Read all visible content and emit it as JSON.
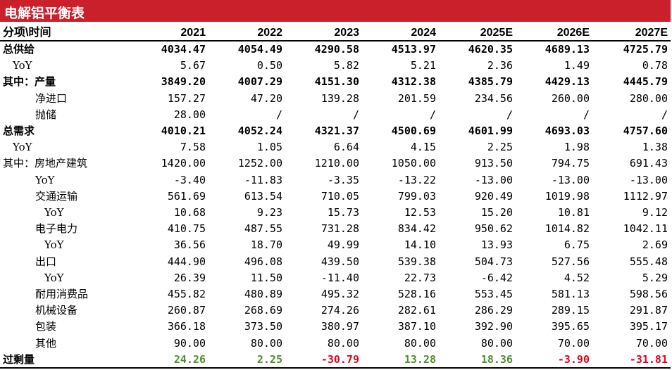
{
  "title": "电解铝平衡表",
  "table": {
    "header": [
      "分项\\时间",
      "2021",
      "2022",
      "2023",
      "2024",
      "2025E",
      "2026E",
      "2027E"
    ],
    "rows": [
      [
        "总供给",
        "4034.47",
        "4054.49",
        "4290.58",
        "4513.97",
        "4620.35",
        "4689.13",
        "4725.79"
      ],
      [
        "YoY",
        "5.67",
        "0.50",
        "5.82",
        "5.21",
        "2.36",
        "1.49",
        "0.78"
      ],
      [
        "其中：产量",
        "3849.20",
        "4007.29",
        "4151.30",
        "4312.38",
        "4385.79",
        "4429.13",
        "4445.79"
      ],
      [
        "净进口",
        "157.27",
        "47.20",
        "139.28",
        "201.59",
        "234.56",
        "260.00",
        "280.00"
      ],
      [
        "抛储",
        "28.00",
        "/",
        "/",
        "/",
        "/",
        "/",
        "/"
      ],
      [
        "总需求",
        "4010.21",
        "4052.24",
        "4321.37",
        "4500.69",
        "4601.99",
        "4693.03",
        "4757.60"
      ],
      [
        "YoY",
        "7.58",
        "1.05",
        "6.64",
        "4.15",
        "2.25",
        "1.98",
        "1.38"
      ],
      [
        "其中：房地产建筑",
        "1420.00",
        "1252.00",
        "1210.00",
        "1050.00",
        "913.50",
        "794.75",
        "691.43"
      ],
      [
        "YoY",
        "-3.40",
        "-11.83",
        "-3.35",
        "-13.22",
        "-13.00",
        "-13.00",
        "-13.00"
      ],
      [
        "交通运输",
        "561.69",
        "613.54",
        "710.05",
        "799.03",
        "920.49",
        "1019.98",
        "1112.97"
      ],
      [
        "YoY",
        "10.68",
        "9.23",
        "15.73",
        "12.53",
        "15.20",
        "10.81",
        "9.12"
      ],
      [
        "电子电力",
        "410.75",
        "487.55",
        "731.28",
        "834.42",
        "950.62",
        "1014.82",
        "1042.11"
      ],
      [
        "YoY",
        "36.56",
        "18.70",
        "49.99",
        "14.10",
        "13.93",
        "6.75",
        "2.69"
      ],
      [
        "出口",
        "444.90",
        "496.08",
        "439.50",
        "539.38",
        "504.73",
        "527.56",
        "555.48"
      ],
      [
        "YoY",
        "26.39",
        "11.50",
        "-11.40",
        "22.73",
        "-6.42",
        "4.52",
        "5.29"
      ],
      [
        "耐用消费品",
        "455.82",
        "480.89",
        "495.32",
        "528.16",
        "553.45",
        "581.13",
        "598.56"
      ],
      [
        "机械设备",
        "260.87",
        "268.69",
        "274.26",
        "282.61",
        "286.29",
        "289.15",
        "291.87"
      ],
      [
        "包装",
        "366.18",
        "373.50",
        "380.97",
        "387.10",
        "392.90",
        "395.65",
        "395.17"
      ],
      [
        "其他",
        "90.00",
        "80.00",
        "80.00",
        "80.00",
        "80.00",
        "70.00",
        "70.00"
      ],
      [
        "过剩量",
        "24.26",
        "2.25",
        "-30.79",
        "13.28",
        "18.36",
        "-3.90",
        "-31.81"
      ]
    ]
  }
}
